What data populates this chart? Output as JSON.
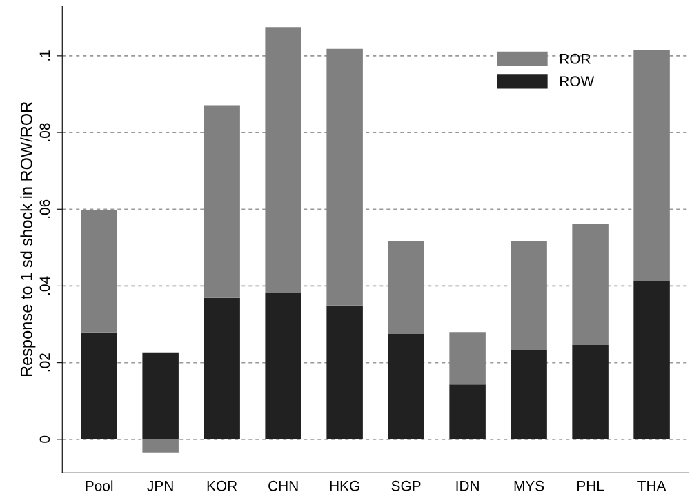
{
  "chart_data": {
    "type": "bar",
    "stacked": true,
    "ylabel": "Response to 1 sd shock in ROW/ROR",
    "categories": [
      "Pool",
      "JPN",
      "KOR",
      "CHN",
      "HKG",
      "SGP",
      "IDN",
      "MYS",
      "PHL",
      "THA"
    ],
    "series": [
      {
        "name": "ROW",
        "color": "#212121",
        "values": [
          0.0279,
          0.0227,
          0.0369,
          0.0382,
          0.0349,
          0.0275,
          0.0143,
          0.0232,
          0.0246,
          0.0413
        ]
      },
      {
        "name": "ROR",
        "color": "#808080",
        "values": [
          0.0318,
          -0.0034,
          0.0502,
          0.0693,
          0.0669,
          0.0242,
          0.0137,
          0.0285,
          0.0316,
          0.0602
        ]
      }
    ],
    "ylim": [
      -0.0087,
      0.113
    ],
    "yticks": [
      0,
      {
        "value": 0.02,
        "label": ".02"
      },
      {
        "value": 0.04,
        "label": ".04"
      },
      {
        "value": 0.06,
        "label": ".06"
      },
      {
        "value": 0.08,
        "label": ".08"
      },
      {
        "value": 0.1,
        "label": ".1"
      }
    ],
    "grid": "y",
    "legend": "top right"
  }
}
